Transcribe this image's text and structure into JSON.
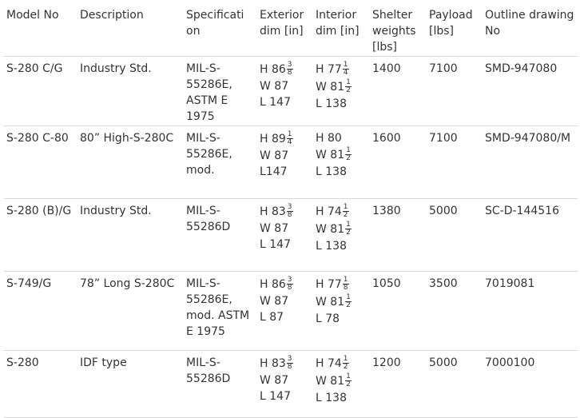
{
  "table": {
    "headers": [
      "Model No",
      "Description",
      "Specificati on",
      "Exterior dim [in]",
      "Interior dim [in]",
      "Shelter weights [lbs]",
      "Payload [lbs]",
      "Outline drawing No"
    ],
    "rows": [
      {
        "model": "S-280 C/G",
        "description": "Industry Std.",
        "spec": "MIL-S-55286E, ASTM E 1975",
        "exterior": [
          {
            "whole": "H 86",
            "num": "3",
            "den": "8"
          },
          {
            "whole": "W 87"
          },
          {
            "whole": "L 147"
          }
        ],
        "interior": [
          {
            "whole": "H 77",
            "num": "1",
            "den": "4"
          },
          {
            "whole": "W 81",
            "num": "1",
            "den": "2"
          },
          {
            "whole": "L 138"
          }
        ],
        "weight": "1400",
        "payload": "7100",
        "drawing": "SMD-947080"
      },
      {
        "model": "S-280 C-80",
        "description": "80” High-S-280C",
        "spec": "MIL-S-55286E, mod.",
        "exterior": [
          {
            "whole": "H 89",
            "num": "1",
            "den": "4"
          },
          {
            "whole": "W 87"
          },
          {
            "whole": "L147"
          }
        ],
        "interior": [
          {
            "whole": "H 80"
          },
          {
            "whole": "W 81",
            "num": "1",
            "den": "2"
          },
          {
            "whole": "L 138"
          }
        ],
        "weight": "1600",
        "payload": "7100",
        "drawing": "SMD-947080/M"
      },
      {
        "model": "S-280 (B)/G",
        "description": "Industry Std.",
        "spec": "MIL-S-55286D",
        "exterior": [
          {
            "whole": "H 83",
            "num": "3",
            "den": "8"
          },
          {
            "whole": "W 87"
          },
          {
            "whole": "L 147"
          }
        ],
        "interior": [
          {
            "whole": "H 74",
            "num": "1",
            "den": "2"
          },
          {
            "whole": "W 81",
            "num": "1",
            "den": "2"
          },
          {
            "whole": "L 138"
          }
        ],
        "weight": "1380",
        "payload": "5000",
        "drawing": "SC-D-144516"
      },
      {
        "model": "S-749/G",
        "description": "78” Long S-280C",
        "spec": "MIL-S-55286E, mod. ASTM E 1975",
        "exterior": [
          {
            "whole": "H 86",
            "num": "3",
            "den": "8"
          },
          {
            "whole": "W 87"
          },
          {
            "whole": "L 87"
          }
        ],
        "interior": [
          {
            "whole": "H 77",
            "num": "1",
            "den": "8"
          },
          {
            "whole": "W 81",
            "num": "1",
            "den": "2"
          },
          {
            "whole": "L 78"
          }
        ],
        "weight": "1050",
        "payload": "3500",
        "drawing": "7019081"
      },
      {
        "model": "S-280",
        "description": "IDF type",
        "spec": "MIL-S-55286D",
        "exterior": [
          {
            "whole": "H 83",
            "num": "3",
            "den": "8"
          },
          {
            "whole": "W 87"
          },
          {
            "whole": "L 147"
          }
        ],
        "interior": [
          {
            "whole": "H 74",
            "num": "1",
            "den": "2"
          },
          {
            "whole": "W 81",
            "num": "1",
            "den": "2"
          },
          {
            "whole": "L 138"
          }
        ],
        "weight": "1200",
        "payload": "5000",
        "drawing": "7000100"
      }
    ]
  }
}
